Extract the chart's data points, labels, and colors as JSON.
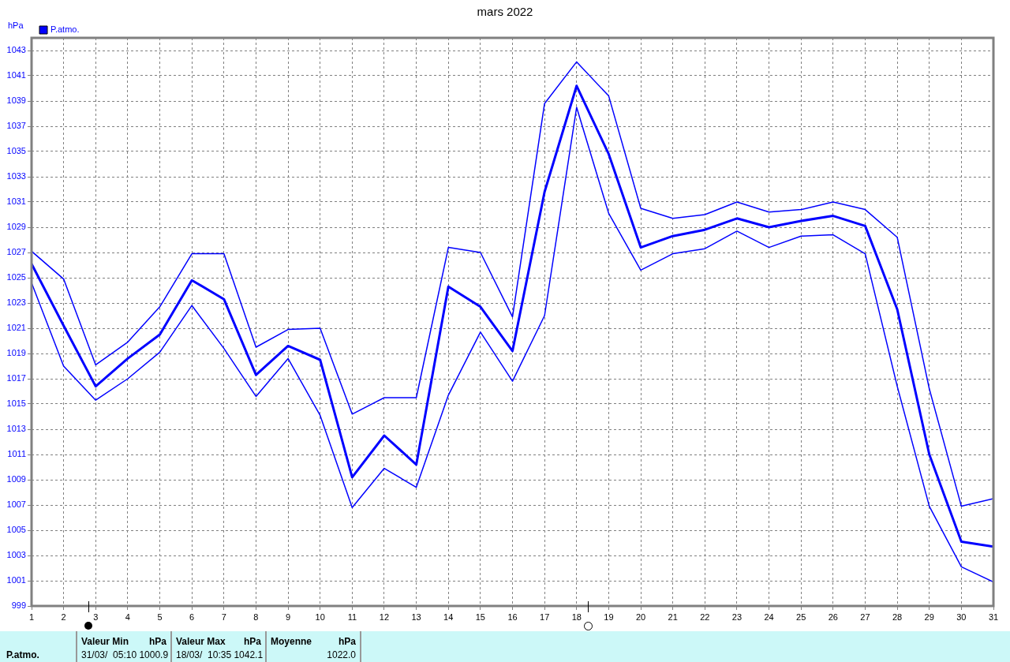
{
  "chart_data": {
    "type": "line",
    "title": "mars 2022",
    "ylabel": "hPa",
    "legend": "top left",
    "grid": true,
    "marker": "none",
    "line_style": "solid",
    "x": [
      1,
      2,
      3,
      4,
      5,
      6,
      7,
      8,
      9,
      10,
      11,
      12,
      13,
      14,
      15,
      16,
      17,
      18,
      19,
      20,
      21,
      22,
      23,
      24,
      25,
      26,
      27,
      28,
      29,
      30,
      31
    ],
    "xlim": [
      1,
      31
    ],
    "xticks": [
      1,
      2,
      3,
      4,
      5,
      6,
      7,
      8,
      9,
      10,
      11,
      12,
      13,
      14,
      15,
      16,
      17,
      18,
      19,
      20,
      21,
      22,
      23,
      24,
      25,
      26,
      27,
      28,
      29,
      30,
      31
    ],
    "ylim": [
      999,
      1044
    ],
    "yticks": [
      999,
      1001,
      1003,
      1005,
      1007,
      1009,
      1011,
      1013,
      1015,
      1017,
      1019,
      1021,
      1023,
      1025,
      1027,
      1029,
      1031,
      1033,
      1035,
      1037,
      1039,
      1041,
      1043
    ],
    "series": [
      {
        "name": "P.atmo.",
        "color": "#0000ff",
        "values": [
          1026.1,
          1021.2,
          1016.4,
          1018.6,
          1020.5,
          1024.8,
          1023.3,
          1017.3,
          1019.6,
          1018.5,
          1009.2,
          1012.5,
          1010.2,
          1024.3,
          1022.7,
          1019.2,
          1031.8,
          1040.2,
          1034.8,
          1027.4,
          1028.3,
          1028.8,
          1029.7,
          1029.0,
          1029.5,
          1029.9,
          1029.1,
          1022.5,
          1011.0,
          1004.1,
          1003.7
        ]
      },
      {
        "color": "#0000ff",
        "values": [
          1027.1,
          1024.9,
          1018.1,
          1019.9,
          1022.7,
          1026.9,
          1026.9,
          1019.5,
          1020.9,
          1021.0,
          1014.2,
          1015.5,
          1015.5,
          1027.4,
          1027.0,
          1021.9,
          1038.8,
          1042.1,
          1039.4,
          1030.5,
          1029.7,
          1030.0,
          1031.0,
          1030.2,
          1030.4,
          1031.0,
          1030.4,
          1028.2,
          1016.2,
          1006.9,
          1007.5
        ]
      },
      {
        "color": "#0000ff",
        "values": [
          1024.6,
          1018.0,
          1015.3,
          1017.0,
          1019.1,
          1022.8,
          1019.4,
          1015.6,
          1018.6,
          1014.1,
          1006.8,
          1009.9,
          1008.4,
          1015.7,
          1020.7,
          1016.8,
          1022.0,
          1038.5,
          1030.1,
          1025.6,
          1026.9,
          1027.3,
          1028.7,
          1027.4,
          1028.3,
          1028.4,
          1026.9,
          1016.4,
          1006.9,
          1002.1,
          1000.9
        ]
      }
    ],
    "annotations": [
      "P.atmo.",
      "Valeur Min",
      "hPa",
      "31/03/  05:10 1000.9",
      "Valeur Max",
      "hPa",
      "18/03/  10:35 1042.1",
      "Moyenne",
      "hPa",
      "1022.0"
    ]
  }
}
